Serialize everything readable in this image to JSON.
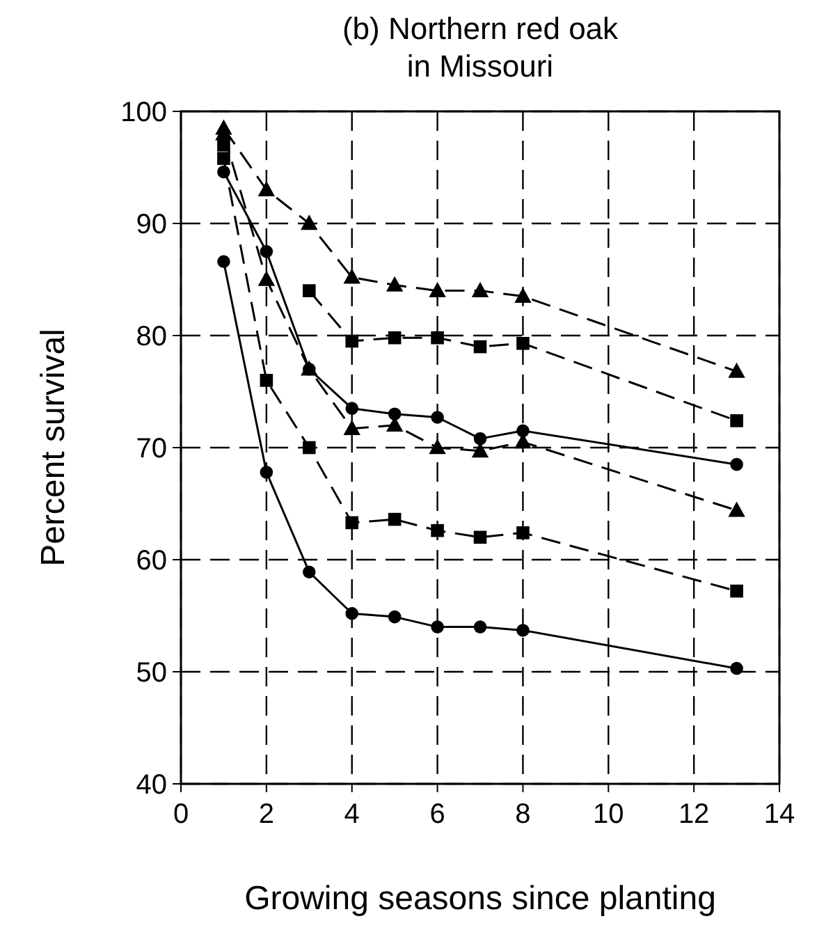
{
  "chart_data": {
    "type": "line",
    "title": "(b) Northern red oak\nin Missouri",
    "xlabel": "Growing seasons since planting",
    "ylabel": "Percent survival",
    "x": [
      1,
      2,
      3,
      4,
      5,
      6,
      7,
      8,
      13
    ],
    "xlim": [
      0,
      14
    ],
    "xticks": [
      0,
      2,
      4,
      6,
      8,
      10,
      12,
      14
    ],
    "ylim": [
      40,
      100
    ],
    "yticks": [
      40,
      50,
      60,
      70,
      80,
      90,
      100
    ],
    "grid": true,
    "series": [
      {
        "color": "#000000",
        "marker": "triangle",
        "line_style": "dashed",
        "values": [
          98.5,
          93,
          90,
          85.2,
          84.5,
          84,
          84,
          83.5,
          76.8
        ]
      },
      {
        "color": "#000000",
        "marker": "square",
        "line_style": "dashed",
        "values": [
          97,
          null,
          84,
          79.5,
          79.8,
          79.8,
          79,
          79.3,
          72.4
        ]
      },
      {
        "color": "#000000",
        "marker": "circle",
        "line_style": "solid",
        "values": [
          94.6,
          87.5,
          77,
          73.5,
          73,
          72.7,
          70.8,
          71.5,
          68.5
        ]
      },
      {
        "color": "#000000",
        "marker": "triangle",
        "line_style": "dashed",
        "values": [
          98,
          85,
          77,
          71.7,
          72,
          70,
          69.7,
          70.5,
          64.4
        ]
      },
      {
        "color": "#000000",
        "marker": "square",
        "line_style": "dashed",
        "values": [
          95.8,
          76,
          70,
          63.3,
          63.6,
          62.6,
          62,
          62.4,
          57.2
        ]
      },
      {
        "color": "#000000",
        "marker": "circle",
        "line_style": "solid",
        "values": [
          86.6,
          67.8,
          58.9,
          55.2,
          54.9,
          54,
          54,
          53.7,
          50.3
        ]
      }
    ]
  }
}
